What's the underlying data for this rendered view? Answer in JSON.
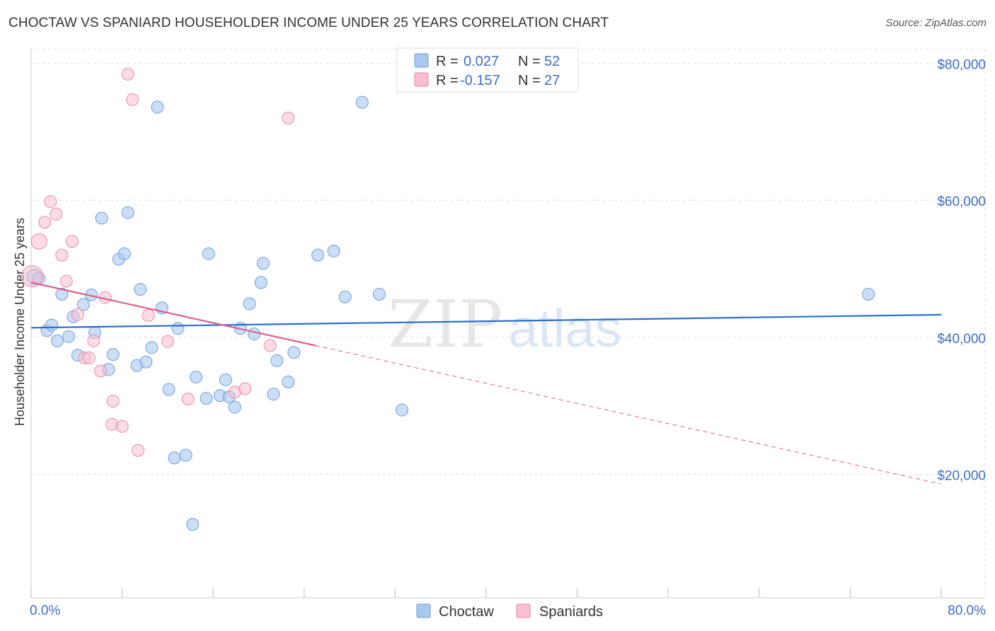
{
  "title": "CHOCTAW VS SPANIARD HOUSEHOLDER INCOME UNDER 25 YEARS CORRELATION CHART",
  "source": "Source: ZipAtlas.com",
  "watermark": {
    "zip": "ZIP",
    "atlas": "atlas"
  },
  "colors": {
    "choctaw_fill": "#a9c8ee",
    "choctaw_stroke": "#6f9fd8",
    "choctaw_line": "#2a6fcc",
    "spaniard_fill": "#f7bfd0",
    "spaniard_stroke": "#e88aa8",
    "spaniard_line": "#e0608c",
    "tick_text": "#3d6fc4",
    "grid": "#dddddd"
  },
  "legend": {
    "rows": [
      {
        "r_label": "R =",
        "r_value": "0.027",
        "n_label": "N =",
        "n_value": "52"
      },
      {
        "r_label": "R =",
        "r_value": "-0.157",
        "n_label": "N =",
        "n_value": "27"
      }
    ]
  },
  "bottom_legend": [
    "Choctaw",
    "Spaniards"
  ],
  "chart_data": {
    "type": "scatter",
    "title": "CHOCTAW VS SPANIARD HOUSEHOLDER INCOME UNDER 25 YEARS CORRELATION CHART",
    "xlabel": "",
    "ylabel": "Householder Income Under 25 years",
    "xlim": [
      0,
      80
    ],
    "ylim": [
      2000,
      82000
    ],
    "x_tick_labels": [
      "0.0%",
      "80.0%"
    ],
    "y_ticks": [
      20000,
      40000,
      60000,
      80000
    ],
    "y_tick_labels": [
      "$20,000",
      "$40,000",
      "$60,000",
      "$80,000"
    ],
    "grid": true,
    "legend_position": "top-center",
    "series": [
      {
        "name": "Choctaw",
        "r": 0.027,
        "n": 52,
        "trend": {
          "x": [
            0,
            80
          ],
          "y": [
            41400,
            43300
          ],
          "dashed_to": null
        },
        "points": [
          [
            0.3,
            48800
          ],
          [
            0.7,
            48600
          ],
          [
            1.4,
            41000
          ],
          [
            1.8,
            41800
          ],
          [
            2.3,
            39500
          ],
          [
            2.7,
            46300
          ],
          [
            3.3,
            40100
          ],
          [
            3.7,
            43000
          ],
          [
            4.1,
            37400
          ],
          [
            4.6,
            44800
          ],
          [
            5.3,
            46200
          ],
          [
            5.6,
            40700
          ],
          [
            6.2,
            57400
          ],
          [
            6.8,
            35300
          ],
          [
            7.2,
            37500
          ],
          [
            7.7,
            51400
          ],
          [
            8.2,
            52200
          ],
          [
            8.5,
            58200
          ],
          [
            9.3,
            35900
          ],
          [
            9.6,
            47000
          ],
          [
            10.1,
            36400
          ],
          [
            10.6,
            38500
          ],
          [
            11.1,
            73600
          ],
          [
            11.5,
            44300
          ],
          [
            12.1,
            32400
          ],
          [
            12.9,
            41300
          ],
          [
            12.6,
            22400
          ],
          [
            13.6,
            22800
          ],
          [
            14.2,
            12700
          ],
          [
            14.5,
            34200
          ],
          [
            15.4,
            31100
          ],
          [
            15.6,
            52200
          ],
          [
            16.6,
            31500
          ],
          [
            17.1,
            33800
          ],
          [
            17.4,
            31300
          ],
          [
            17.9,
            29800
          ],
          [
            18.4,
            41300
          ],
          [
            19.2,
            44900
          ],
          [
            19.6,
            40500
          ],
          [
            20.2,
            48000
          ],
          [
            20.4,
            50800
          ],
          [
            21.3,
            31700
          ],
          [
            21.6,
            36600
          ],
          [
            22.6,
            33500
          ],
          [
            23.1,
            37800
          ],
          [
            25.2,
            52000
          ],
          [
            26.6,
            52600
          ],
          [
            27.6,
            45900
          ],
          [
            29.1,
            74300
          ],
          [
            30.6,
            46300
          ],
          [
            32.6,
            29400
          ],
          [
            73.6,
            46300
          ]
        ]
      },
      {
        "name": "Spaniards",
        "r": -0.157,
        "n": 27,
        "trend": {
          "x": [
            0,
            25
          ],
          "y": [
            48000,
            38800
          ],
          "dashed_to": [
            80,
            18600
          ]
        },
        "points": [
          [
            0.1,
            48900
          ],
          [
            0.7,
            54000
          ],
          [
            1.2,
            56800
          ],
          [
            1.7,
            59800
          ],
          [
            2.2,
            58000
          ],
          [
            2.7,
            52000
          ],
          [
            3.1,
            48200
          ],
          [
            3.6,
            54000
          ],
          [
            4.1,
            43300
          ],
          [
            4.7,
            37000
          ],
          [
            5.1,
            37000
          ],
          [
            5.5,
            39500
          ],
          [
            6.1,
            35100
          ],
          [
            6.5,
            45800
          ],
          [
            7.1,
            27300
          ],
          [
            7.2,
            30700
          ],
          [
            8.0,
            27000
          ],
          [
            8.5,
            78400
          ],
          [
            8.9,
            74700
          ],
          [
            9.4,
            23500
          ],
          [
            10.3,
            43200
          ],
          [
            12.0,
            39400
          ],
          [
            13.8,
            31000
          ],
          [
            17.9,
            32000
          ],
          [
            18.8,
            32500
          ],
          [
            21.0,
            38800
          ],
          [
            22.6,
            72000
          ]
        ]
      }
    ]
  }
}
